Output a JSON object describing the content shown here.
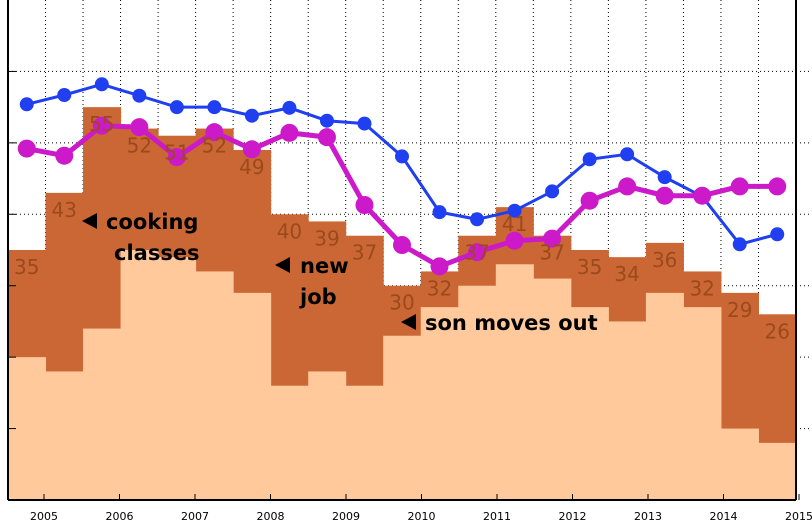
{
  "chart_data": {
    "type": "area",
    "x_ticks": [
      "2005",
      "2006",
      "2007",
      "2008",
      "2009",
      "2010",
      "2011",
      "2012",
      "2013",
      "2014",
      "2015"
    ],
    "bar_labels": [
      "35",
      "43",
      "55",
      "52",
      "51",
      "52",
      "49",
      "40",
      "39",
      "37",
      "30",
      "32",
      "37",
      "41",
      "37",
      "35",
      "34",
      "36",
      "32",
      "29",
      "26"
    ],
    "bar_totals": [
      35,
      43,
      55,
      52,
      51,
      52,
      49,
      40,
      39,
      37,
      30,
      32,
      37,
      41,
      37,
      35,
      34,
      36,
      32,
      29,
      26
    ],
    "light_values": [
      20,
      18,
      24,
      35,
      34,
      32,
      29,
      16,
      18,
      16,
      23,
      27,
      30,
      33,
      31,
      27,
      25,
      29,
      27,
      10,
      8
    ],
    "ylim": [
      0,
      70
    ],
    "series": [
      {
        "color": "#1f3ff0",
        "values": [
          55.4,
          56.7,
          58.2,
          56.6,
          55,
          55,
          53.8,
          54.9,
          53.1,
          52.7,
          48.1,
          40.3,
          39.3,
          40.5,
          43.2,
          47.7,
          48.4,
          45.2,
          42.5,
          35.8,
          37.2
        ]
      },
      {
        "color": "#cc19c9",
        "values": [
          49.2,
          48.2,
          52.4,
          52.2,
          48,
          51.5,
          49.1,
          51.4,
          50.8,
          41.3,
          35.7,
          32.7,
          34.7,
          36.3,
          36.6,
          41.9,
          43.9,
          42.6,
          42.6,
          43.9,
          43.9
        ]
      }
    ],
    "annotations": [
      {
        "lines": [
          "cooking",
          "classes"
        ]
      },
      {
        "lines": [
          "new",
          "job"
        ]
      },
      {
        "lines": [
          "son moves out"
        ]
      }
    ],
    "colors": {
      "dark_area": "#cb6734",
      "light_area": "#ffc99b",
      "label": "#9a4a1c"
    },
    "grid": true
  }
}
